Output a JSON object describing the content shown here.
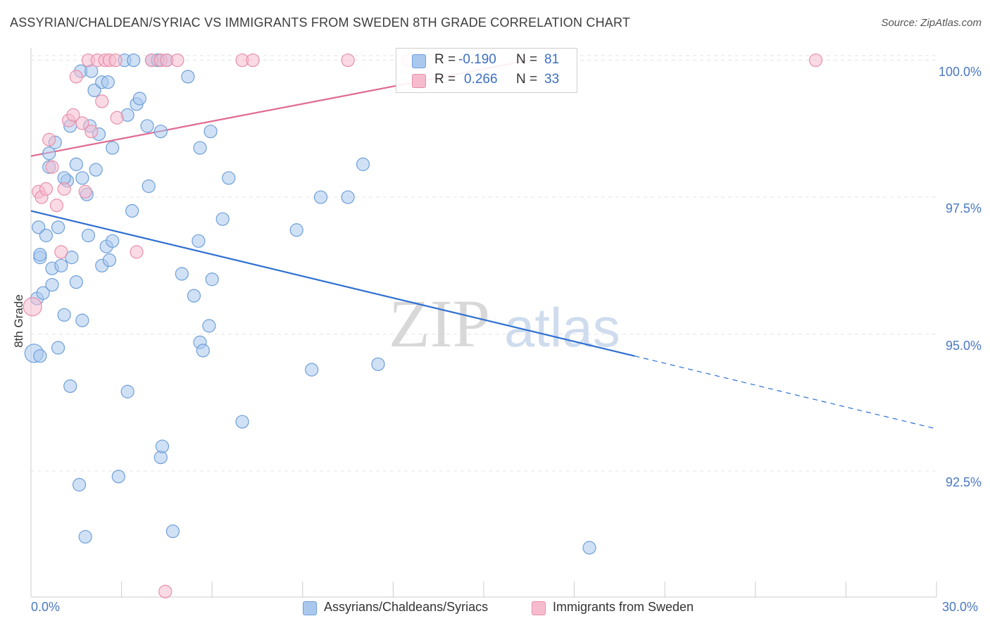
{
  "title": "ASSYRIAN/CHALDEAN/SYRIAC VS IMMIGRANTS FROM SWEDEN 8TH GRADE CORRELATION CHART",
  "source": "Source: ZipAtlas.com",
  "watermark": {
    "zip": "ZIP",
    "atlas": "atlas"
  },
  "legend_top": {
    "rows": [
      {
        "r_label": "R =",
        "r_value": "-0.190",
        "n_label": "N =",
        "n_value": "81"
      },
      {
        "r_label": "R =",
        "r_value": "0.266",
        "n_label": "N =",
        "n_value": "33"
      }
    ]
  },
  "legend_bottom": [
    "Assyrians/Chaldeans/Syriacs",
    "Immigrants from Sweden"
  ],
  "colors": {
    "blue_fill": "#aac8ee",
    "blue_stroke": "#6e9fd8",
    "blue_line": "#2d6fd1",
    "pink_fill": "#f6bccd",
    "pink_stroke": "#e890ab",
    "pink_line": "#e06a91",
    "grid": "#e3e3e3",
    "tick_text": "#4a78c2"
  },
  "chart_data": {
    "type": "scatter",
    "ylabel": "8th Grade",
    "xlim": [
      0.0,
      30.0
    ],
    "ylim": [
      90.2,
      100.2
    ],
    "x_tick_labels": [
      "0.0%",
      "30.0%"
    ],
    "y_ticks": [
      {
        "value": 100.0,
        "label": "100.0%"
      },
      {
        "value": 97.5,
        "label": "97.5%"
      },
      {
        "value": 95.0,
        "label": "95.0%"
      },
      {
        "value": 92.5,
        "label": "92.5%"
      }
    ],
    "series": [
      {
        "name": "Assyrians/Chaldeans/Syriacs",
        "color": "blue",
        "r": -0.19,
        "n": 81,
        "trend": {
          "x0": 0.0,
          "y0": 97.25,
          "x1": 20.0,
          "y1": 94.6,
          "dash_to_x": 30.0,
          "dash_to_y": 93.27
        },
        "points": [
          [
            0.1,
            94.65
          ],
          [
            0.3,
            94.6
          ],
          [
            0.2,
            95.65
          ],
          [
            0.25,
            96.95
          ],
          [
            0.3,
            96.4
          ],
          [
            0.3,
            96.45
          ],
          [
            0.4,
            95.75
          ],
          [
            0.5,
            96.8
          ],
          [
            0.6,
            98.05
          ],
          [
            0.6,
            98.3
          ],
          [
            0.7,
            96.2
          ],
          [
            0.7,
            95.9
          ],
          [
            0.8,
            98.5
          ],
          [
            0.9,
            96.95
          ],
          [
            0.9,
            94.75
          ],
          [
            1.0,
            96.25
          ],
          [
            1.1,
            95.35
          ],
          [
            1.2,
            97.8
          ],
          [
            1.3,
            94.05
          ],
          [
            1.3,
            98.8
          ],
          [
            1.35,
            96.4
          ],
          [
            1.5,
            98.1
          ],
          [
            1.5,
            95.95
          ],
          [
            1.6,
            92.25
          ],
          [
            1.65,
            99.8
          ],
          [
            1.7,
            97.85
          ],
          [
            1.7,
            95.25
          ],
          [
            1.8,
            91.3
          ],
          [
            1.85,
            97.55
          ],
          [
            1.9,
            96.8
          ],
          [
            1.95,
            98.8
          ],
          [
            2.1,
            99.45
          ],
          [
            2.15,
            98.0
          ],
          [
            2.25,
            98.65
          ],
          [
            2.35,
            99.6
          ],
          [
            2.35,
            96.25
          ],
          [
            2.5,
            96.6
          ],
          [
            2.55,
            99.6
          ],
          [
            2.6,
            96.35
          ],
          [
            2.7,
            98.4
          ],
          [
            2.7,
            96.7
          ],
          [
            2.9,
            92.4
          ],
          [
            3.1,
            100.0
          ],
          [
            3.2,
            99.0
          ],
          [
            3.2,
            93.95
          ],
          [
            3.35,
            97.25
          ],
          [
            3.4,
            100.0
          ],
          [
            3.5,
            99.2
          ],
          [
            3.6,
            99.3
          ],
          [
            3.85,
            98.8
          ],
          [
            3.9,
            97.7
          ],
          [
            4.0,
            100.0
          ],
          [
            4.2,
            100.0
          ],
          [
            4.3,
            98.7
          ],
          [
            4.3,
            92.75
          ],
          [
            4.35,
            92.95
          ],
          [
            4.5,
            100.0
          ],
          [
            4.7,
            91.4
          ],
          [
            5.0,
            96.1
          ],
          [
            5.2,
            99.7
          ],
          [
            5.4,
            95.7
          ],
          [
            5.55,
            96.7
          ],
          [
            5.6,
            94.85
          ],
          [
            5.6,
            98.4
          ],
          [
            5.7,
            94.7
          ],
          [
            5.9,
            95.15
          ],
          [
            5.95,
            98.7
          ],
          [
            6.0,
            96.0
          ],
          [
            6.35,
            97.1
          ],
          [
            6.55,
            97.85
          ],
          [
            7.0,
            93.4
          ],
          [
            8.8,
            96.9
          ],
          [
            9.3,
            94.35
          ],
          [
            9.6,
            97.5
          ],
          [
            10.5,
            97.5
          ],
          [
            11.0,
            98.1
          ],
          [
            11.5,
            94.45
          ],
          [
            18.5,
            91.1
          ],
          [
            1.1,
            97.85
          ],
          [
            4.2,
            100.0
          ],
          [
            2.0,
            99.8
          ]
        ]
      },
      {
        "name": "Immigrants from Sweden",
        "color": "pink",
        "r": 0.266,
        "n": 33,
        "trend": {
          "x0": 0.0,
          "y0": 98.25,
          "x1": 16.5,
          "y1": 100.0
        },
        "points": [
          [
            0.05,
            95.5
          ],
          [
            0.25,
            97.6
          ],
          [
            0.35,
            97.5
          ],
          [
            0.5,
            97.65
          ],
          [
            0.6,
            98.55
          ],
          [
            0.7,
            98.05
          ],
          [
            0.85,
            97.35
          ],
          [
            1.0,
            96.5
          ],
          [
            1.1,
            97.65
          ],
          [
            1.25,
            98.9
          ],
          [
            1.4,
            99.0
          ],
          [
            1.5,
            99.7
          ],
          [
            1.7,
            98.85
          ],
          [
            1.8,
            97.6
          ],
          [
            1.9,
            100.0
          ],
          [
            2.0,
            98.7
          ],
          [
            2.2,
            100.0
          ],
          [
            2.35,
            99.25
          ],
          [
            2.45,
            100.0
          ],
          [
            2.6,
            100.0
          ],
          [
            2.8,
            100.0
          ],
          [
            2.85,
            98.95
          ],
          [
            3.5,
            96.5
          ],
          [
            4.0,
            100.0
          ],
          [
            4.3,
            100.0
          ],
          [
            4.45,
            90.3
          ],
          [
            4.5,
            100.0
          ],
          [
            4.85,
            100.0
          ],
          [
            7.0,
            100.0
          ],
          [
            7.35,
            100.0
          ],
          [
            10.5,
            100.0
          ],
          [
            12.5,
            100.0
          ],
          [
            26.0,
            100.0
          ]
        ]
      }
    ],
    "grid": true,
    "legend_placement": "top-center and bottom"
  }
}
